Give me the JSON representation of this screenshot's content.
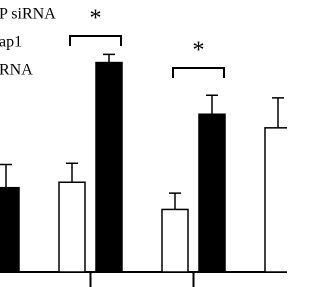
{
  "chart_data": {
    "type": "bar",
    "categories": [
      null,
      null,
      null,
      null
    ],
    "series": [
      {
        "color": "#ffffff",
        "values": [
          null,
          33,
          23,
          53
        ],
        "errors": [
          null,
          7,
          6,
          11
        ]
      },
      {
        "color": "#000000",
        "values": [
          31,
          77,
          58,
          null
        ],
        "errors": [
          8.5,
          3,
          7,
          null
        ]
      }
    ],
    "legend_lines": [
      "P siRNA",
      "ap1",
      "RNA"
    ],
    "annotations": [
      {
        "text": "*"
      },
      {
        "text": "*"
      }
    ],
    "ylim": [
      0,
      100
    ]
  }
}
